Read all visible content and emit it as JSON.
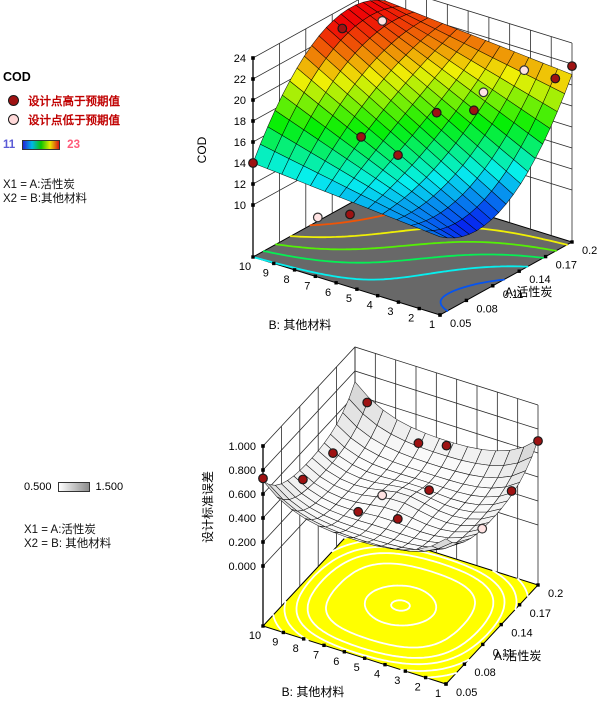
{
  "legend_top": {
    "title": "COD",
    "above_label": "设计点高于预期值",
    "below_label": "设计点低于预期值",
    "scale_min": "11",
    "scale_max": "23",
    "x1_line": "X1 = A:活性炭",
    "x2_line": "X2 = B:其他材料",
    "accent_above": "#9e1212",
    "accent_text": "#c00000"
  },
  "legend_bottom": {
    "scale_min": "0.500",
    "scale_max": "1.500",
    "x1_line": "X1 = A:活性炭",
    "x2_line": "X2 = B: 其他材料"
  },
  "chart_data": [
    {
      "type": "surface3d",
      "zlabel": "COD",
      "xlabel": "A:活性炭",
      "ylabel": "B: 其他材料",
      "x_range": [
        0.05,
        0.2
      ],
      "y_range": [
        1,
        10
      ],
      "z_range": [
        10,
        24
      ],
      "x_ticks": [
        0.05,
        0.08,
        0.11,
        0.14,
        0.17,
        0.2
      ],
      "x_tick_labels": [
        "0.05",
        "0.08",
        "0.11",
        "0.14",
        "0.17",
        "0.2"
      ],
      "y_ticks": [
        10,
        9,
        8,
        7,
        6,
        5,
        4,
        3,
        2,
        1
      ],
      "y_tick_labels": [
        "10",
        "9",
        "8",
        "7",
        "6",
        "5",
        "4",
        "3",
        "2",
        "1"
      ],
      "z_ticks": [
        10,
        12,
        14,
        16,
        18,
        20,
        22,
        24
      ],
      "z_tick_labels": [
        "10",
        "12",
        "14",
        "16",
        "18",
        "20",
        "22",
        "24"
      ],
      "surface": "rainbow",
      "color_scale": {
        "min": 11,
        "max": 23
      },
      "floor_color": "#686868",
      "contour_levels": [
        12,
        14,
        16,
        18,
        20,
        22
      ],
      "model": {
        "desc": "COD(u,v) = (1-v)*(12.5-10u+18.5u^2) + v*(14+26u-17.5u^2); u,v normalized A,B",
        "f0": [
          12.5,
          -10,
          18.5
        ],
        "f1": [
          14,
          26,
          -17.5
        ]
      },
      "points": [
        {
          "a": 0.05,
          "b": 10.0,
          "value": 14.0,
          "above": true
        },
        {
          "a": 0.135,
          "b": 9.3,
          "value": 23.3,
          "above": true
        },
        {
          "a": 0.171,
          "b": 8.9,
          "value": 22.6,
          "above": false
        },
        {
          "a": 0.076,
          "b": 5.9,
          "value": 17.8,
          "above": true
        },
        {
          "a": 0.092,
          "b": 4.8,
          "value": 16.0,
          "above": true
        },
        {
          "a": 0.067,
          "b": 7.6,
          "value": 9.5,
          "above": false
        },
        {
          "a": 0.08,
          "b": 6.6,
          "value": 9.8,
          "above": true
        },
        {
          "a": 0.136,
          "b": 4.8,
          "value": 18.0,
          "above": true
        },
        {
          "a": 0.157,
          "b": 3.9,
          "value": 17.8,
          "above": true
        },
        {
          "a": 0.175,
          "b": 4.2,
          "value": 18.5,
          "above": false
        },
        {
          "a": 0.2,
          "b": 3.3,
          "value": 20.0,
          "above": false
        },
        {
          "a": 0.181,
          "b": 1.0,
          "value": 21.5,
          "above": true
        },
        {
          "a": 0.2,
          "b": 1.0,
          "value": 21.8,
          "above": true
        }
      ]
    },
    {
      "type": "surface3d",
      "zlabel": "设计标准误差",
      "xlabel": "A:活性炭",
      "ylabel": "B: 其他材料",
      "x_range": [
        0.05,
        0.2
      ],
      "y_range": [
        1,
        10
      ],
      "z_range": [
        0,
        1
      ],
      "x_ticks": [
        0.05,
        0.08,
        0.11,
        0.14,
        0.17,
        0.2
      ],
      "x_tick_labels": [
        "0.05",
        "0.08",
        "0.11",
        "0.14",
        "0.17",
        "0.2"
      ],
      "y_ticks": [
        10,
        9,
        8,
        7,
        6,
        5,
        4,
        3,
        2,
        1
      ],
      "y_tick_labels": [
        "10",
        "9",
        "8",
        "7",
        "6",
        "5",
        "4",
        "3",
        "2",
        "1"
      ],
      "z_ticks": [
        0,
        0.2,
        0.4,
        0.6,
        0.8,
        1.0
      ],
      "z_tick_labels": [
        "0.000",
        "0.200",
        "0.400",
        "0.600",
        "0.800",
        "1.000"
      ],
      "surface": "grayscale",
      "color_scale": {
        "min": 0.5,
        "max": 1.5
      },
      "floor_color": "#ffff00",
      "contour_levels": [
        0.36,
        0.4,
        0.44,
        0.5,
        0.58
      ],
      "contour_color": "#ffffff",
      "model": {
        "desc": "StdErr(u,v) = 0.33 + 0.13(p^4+q^4) + 0.12 p^2 q^2 + 0.075 e^(-8(p^2+q^2)); p=2u-1, q=2v-1",
        "base": 0.33,
        "quart": 0.13,
        "cross": 0.12,
        "bump": 0.075,
        "bumpk": 8
      },
      "points": [
        {
          "a": 0.05,
          "b": 10.0,
          "value": 0.73,
          "above": true
        },
        {
          "a": 0.2,
          "b": 9.4,
          "value": 0.57,
          "above": true
        },
        {
          "a": 0.184,
          "b": 6.4,
          "value": 0.48,
          "above": true
        },
        {
          "a": 0.2,
          "b": 5.5,
          "value": 0.42,
          "above": true
        },
        {
          "a": 0.121,
          "b": 8.7,
          "value": 0.62,
          "above": true
        },
        {
          "a": 0.072,
          "b": 8.7,
          "value": 0.67,
          "above": true
        },
        {
          "a": 0.125,
          "b": 6.4,
          "value": 0.37,
          "above": false
        },
        {
          "a": 0.112,
          "b": 3.7,
          "value": 0.63,
          "above": true
        },
        {
          "a": 0.2,
          "b": 1.0,
          "value": 0.7,
          "above": true
        },
        {
          "a": 0.157,
          "b": 1.0,
          "value": 0.52,
          "above": true
        },
        {
          "a": 0.061,
          "b": 3.7,
          "value": 0.67,
          "above": true
        },
        {
          "a": 0.109,
          "b": 1.0,
          "value": 0.47,
          "above": false
        },
        {
          "a": 0.056,
          "b": 5.5,
          "value": 0.66,
          "above": true
        }
      ]
    }
  ]
}
